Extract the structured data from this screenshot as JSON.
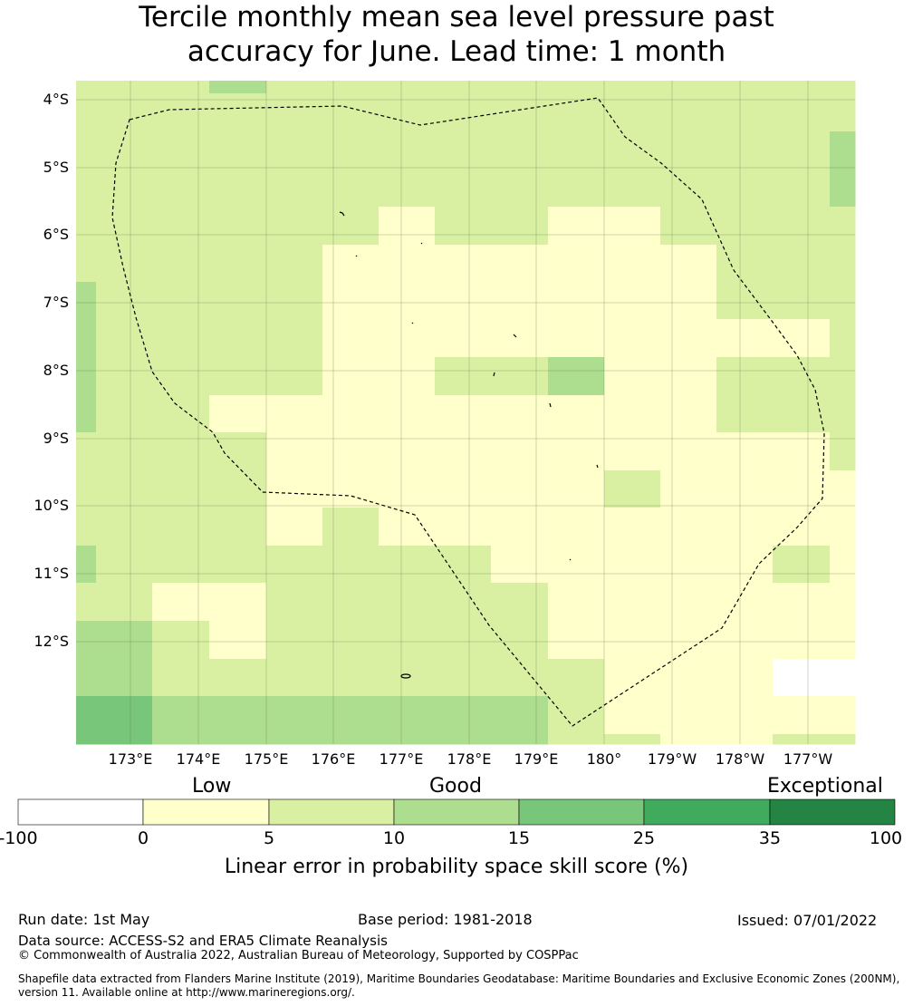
{
  "title": {
    "line1": "Tercile monthly mean sea level pressure past",
    "line2": "accuracy for June. Lead time: 1 month"
  },
  "axes": {
    "lat_labels": [
      "4°S",
      "5°S",
      "6°S",
      "7°S",
      "8°S",
      "9°S",
      "10°S",
      "11°S",
      "12°S"
    ],
    "lon_labels": [
      "173°E",
      "174°E",
      "175°E",
      "176°E",
      "177°E",
      "178°E",
      "179°E",
      "180°",
      "179°W",
      "178°W",
      "177°W"
    ]
  },
  "colorbar": {
    "categories": [
      "Low",
      "Good",
      "Exceptional"
    ],
    "ticks": [
      "-100",
      "0",
      "5",
      "10",
      "15",
      "25",
      "35",
      "100"
    ],
    "colors": [
      "#ffffff",
      "#ffffcc",
      "#d9f0a3",
      "#addd8e",
      "#78c679",
      "#41ab5d",
      "#238443"
    ],
    "label": "Linear error in probability space skill score (%)"
  },
  "footer": {
    "run_date": "Run date: 1st May",
    "base_period": "Base period: 1981-2018",
    "issued": "Issued: 07/01/2022",
    "data_source": "Data source: ACCESS-S2 and ERA5 Climate Reanalysis",
    "copyright": "© Commonwealth of Australia 2022, Australian Bureau of Meteorology, Supported by COSPPac",
    "shapefile_line1": "Shapefile data extracted from Flanders Marine Institute (2019), Maritime Boundaries Geodatabase: Maritime Boundaries and Exclusive Economic Zones (200NM),",
    "shapefile_line2": "version 11. Available online at http://www.marineregions.org/."
  }
}
